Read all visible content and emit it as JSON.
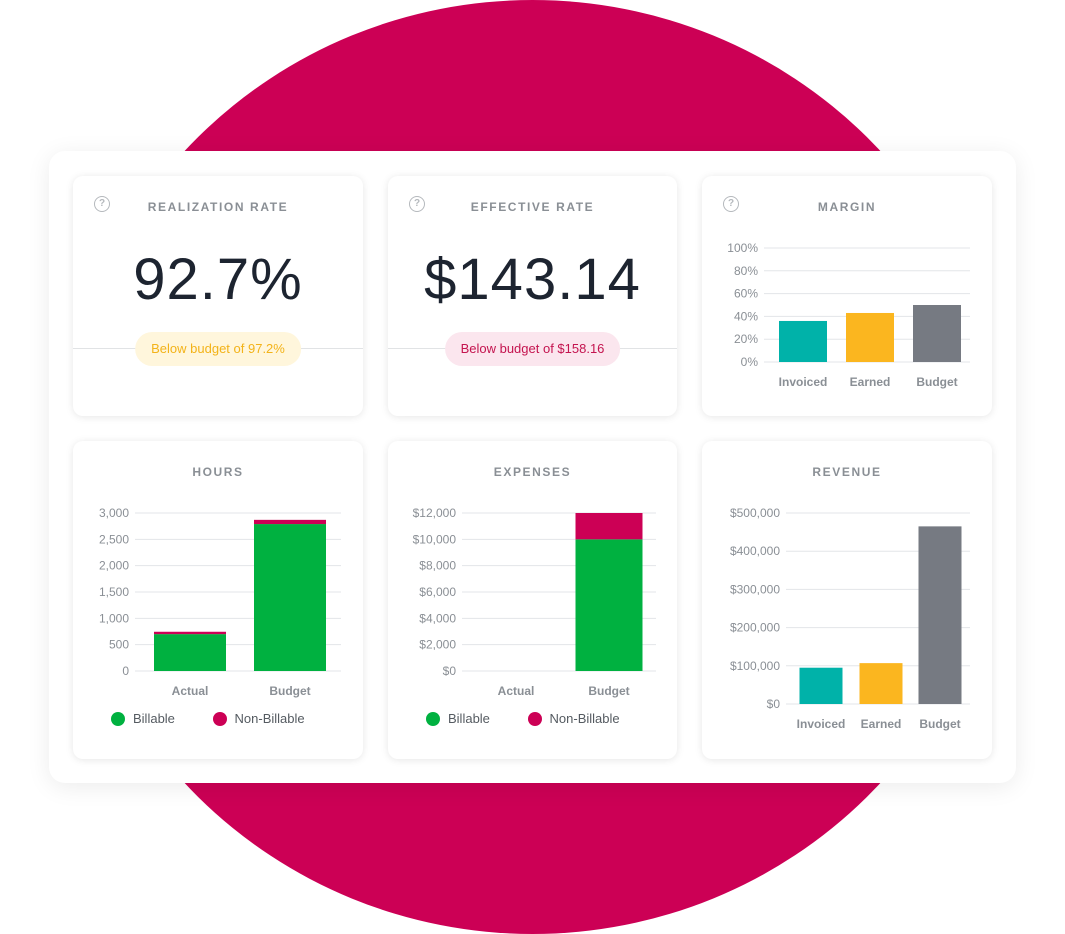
{
  "colors": {
    "teal": "#00b2a9",
    "yellow": "#fbb61f",
    "gray": "#767a82",
    "green": "#00b140",
    "crimson": "#cc0055"
  },
  "realization": {
    "title": "REALIZATION RATE",
    "value": "92.7%",
    "note": "Below budget of 97.2%"
  },
  "effective": {
    "title": "EFFECTIVE RATE",
    "value": "$143.14",
    "note": "Below budget of $158.16"
  },
  "margin_title": "MARGIN",
  "hours_title": "HOURS",
  "expenses_title": "EXPENSES",
  "revenue_title": "REVENUE",
  "legend": {
    "billable": "Billable",
    "non_billable": "Non-Billable"
  },
  "chart_data": [
    {
      "id": "margin",
      "type": "bar",
      "categories": [
        "Invoiced",
        "Earned",
        "Budget"
      ],
      "values": [
        36,
        43,
        50
      ],
      "ylim": [
        0,
        100
      ],
      "yticks": [
        0,
        20,
        40,
        60,
        80,
        100
      ],
      "ytick_labels": [
        "0%",
        "20%",
        "40%",
        "60%",
        "80%",
        "100%"
      ],
      "colors": [
        "teal",
        "yellow",
        "gray"
      ],
      "grid": true
    },
    {
      "id": "hours",
      "type": "bar",
      "stacked": true,
      "categories": [
        "Actual",
        "Budget"
      ],
      "series": [
        {
          "name": "Billable",
          "values": [
            700,
            2790
          ],
          "color": "green"
        },
        {
          "name": "Non-Billable",
          "values": [
            45,
            80
          ],
          "color": "crimson"
        }
      ],
      "ylim": [
        0,
        3000
      ],
      "yticks": [
        0,
        500,
        1000,
        1500,
        2000,
        2500,
        3000
      ],
      "ytick_labels": [
        "0",
        "500",
        "1,000",
        "1,500",
        "2,000",
        "2,500",
        "3,000"
      ],
      "grid": true,
      "legend": "bottom-left"
    },
    {
      "id": "expenses",
      "type": "bar",
      "stacked": true,
      "categories": [
        "Actual",
        "Budget"
      ],
      "series": [
        {
          "name": "Billable",
          "values": [
            0,
            10000
          ],
          "color": "green"
        },
        {
          "name": "Non-Billable",
          "values": [
            0,
            2000
          ],
          "color": "crimson"
        }
      ],
      "ylim": [
        0,
        12000
      ],
      "yticks": [
        0,
        2000,
        4000,
        6000,
        8000,
        10000,
        12000
      ],
      "ytick_labels": [
        "$0",
        "$2,000",
        "$4,000",
        "$6,000",
        "$8,000",
        "$10,000",
        "$12,000"
      ],
      "grid": true,
      "legend": "bottom-left"
    },
    {
      "id": "revenue",
      "type": "bar",
      "categories": [
        "Invoiced",
        "Earned",
        "Budget"
      ],
      "values": [
        95000,
        107000,
        465000
      ],
      "ylim": [
        0,
        500000
      ],
      "yticks": [
        0,
        100000,
        200000,
        300000,
        400000,
        500000
      ],
      "ytick_labels": [
        "$0",
        "$100,000",
        "$200,000",
        "$300,000",
        "$400,000",
        "$500,000"
      ],
      "colors": [
        "teal",
        "yellow",
        "gray"
      ],
      "grid": true
    }
  ]
}
